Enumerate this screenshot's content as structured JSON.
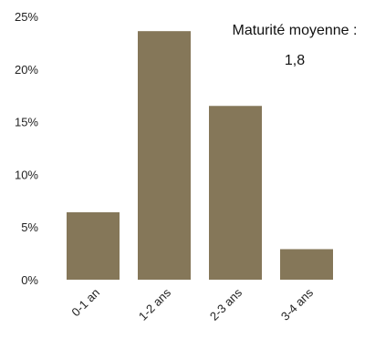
{
  "chart_data": {
    "type": "bar",
    "categories": [
      "0-1 an",
      "1-2 ans",
      "2-3 ans",
      "3-4 ans"
    ],
    "values": [
      6.4,
      23.6,
      16.5,
      2.9
    ],
    "ylim": [
      0,
      25
    ],
    "yticks": [
      0,
      5,
      10,
      15,
      20,
      25
    ],
    "ytick_format": "percent",
    "grid": false,
    "bar_color": "#857759",
    "annotation": {
      "line1": "Maturité moyenne :",
      "line2": "1,8"
    }
  }
}
